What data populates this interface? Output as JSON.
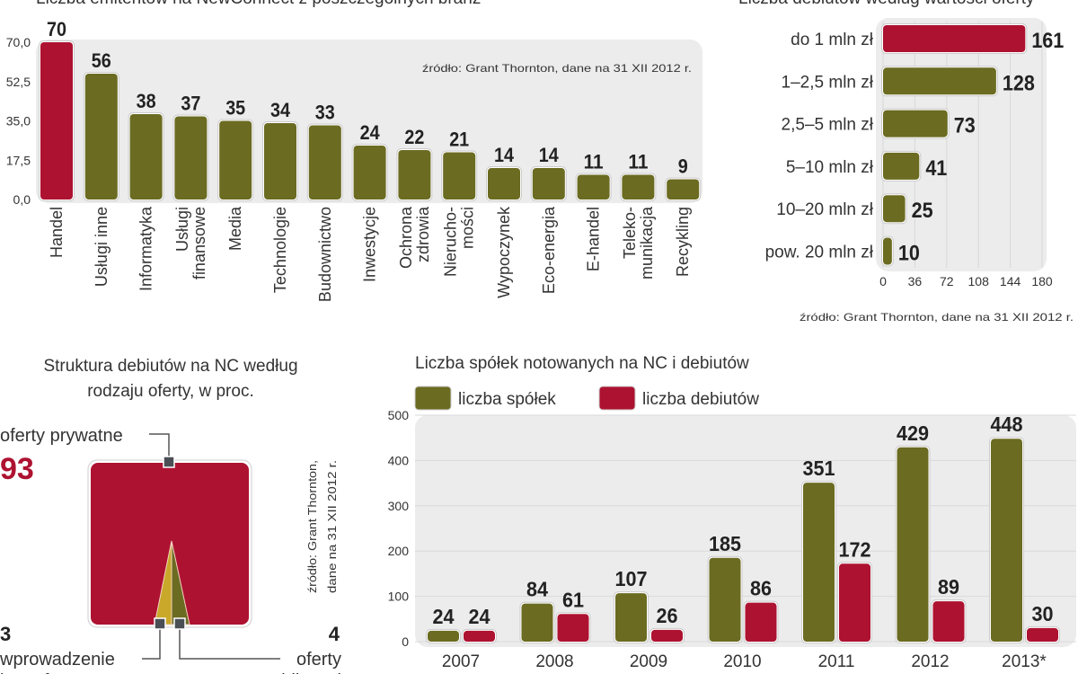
{
  "colors": {
    "red": "#ae1231",
    "olive": "#6b6b22",
    "gold": "#c9a82a",
    "panel": "#ececec",
    "marker": "#4a4f55"
  },
  "chart_data": [
    {
      "type": "bar",
      "title": "Liczba emitentów na NewConnect z poszczególnych branż",
      "source": "źródło: Grant Thornton, dane na 31 XII 2012 r.",
      "categories": [
        "Handel",
        "Usługi inne",
        "Informatyka",
        "Usługi finansowe",
        "Media",
        "Technologie",
        "Budownictwo",
        "Inwestycje",
        "Ochrona zdrowia",
        "Nieruchomości",
        "Wypoczynek",
        "Eco-energia",
        "E-handel",
        "Telekomunikacja",
        "Recykling"
      ],
      "category_labels": [
        [
          "Handel"
        ],
        [
          "Usługi inne"
        ],
        [
          "Informatyka"
        ],
        [
          "Usługi",
          "finansowe"
        ],
        [
          "Media"
        ],
        [
          "Technologie"
        ],
        [
          "Budownictwo"
        ],
        [
          "Inwestycje"
        ],
        [
          "Ochrona",
          "zdrowia"
        ],
        [
          "Nierucho-",
          "mości"
        ],
        [
          "Wypoczynek"
        ],
        [
          "Eco-energia"
        ],
        [
          "E-handel"
        ],
        [
          "Teleko-",
          "munikacja"
        ],
        [
          "Recykling"
        ]
      ],
      "values": [
        70,
        56,
        38,
        37,
        35,
        34,
        33,
        24,
        22,
        21,
        14,
        14,
        11,
        11,
        9
      ],
      "highlight_index": 0,
      "yticks": [
        "0,0",
        "17,5",
        "35,0",
        "52,5",
        "70,0"
      ],
      "ylim": [
        0,
        70
      ]
    },
    {
      "type": "bar",
      "orientation": "horizontal",
      "title": "Liczba debiutów według wartości oferty",
      "source": "źródło: Grant Thornton, dane na 31 XII 2012 r.",
      "categories": [
        "do 1 mln zł",
        "1–2,5 mln zł",
        "2,5–5 mln zł",
        "5–10 mln zł",
        "10–20 mln zł",
        "pow. 20 mln zł"
      ],
      "values": [
        161,
        128,
        73,
        41,
        25,
        10
      ],
      "highlight_index": 0,
      "xticks": [
        0,
        36,
        72,
        108,
        144,
        180
      ],
      "xlim": [
        0,
        180
      ]
    },
    {
      "type": "area",
      "title_lines": [
        "Struktura debiutów na NC według",
        "rodzaju oferty, w proc."
      ],
      "source_lines": [
        "źródło: Grant Thornton,",
        "dane na 31 XII 2012 r."
      ],
      "slices": [
        {
          "label": "oferty prywatne",
          "value": 93
        },
        {
          "label_lines": [
            "wprowadzenie",
            "bez oferty"
          ],
          "value": 3
        },
        {
          "label_lines": [
            "oferty",
            "publicznej"
          ],
          "value": 4
        }
      ]
    },
    {
      "type": "bar",
      "title": "Liczba spółek notowanych na NC i debiutów",
      "categories": [
        "2007",
        "2008",
        "2009",
        "2010",
        "2011",
        "2012",
        "2013*"
      ],
      "series": [
        {
          "name": "liczba spółek",
          "values": [
            24,
            84,
            107,
            185,
            351,
            429,
            448
          ]
        },
        {
          "name": "liczba debiutów",
          "values": [
            24,
            61,
            26,
            86,
            172,
            89,
            30
          ]
        }
      ],
      "yticks": [
        0,
        100,
        200,
        300,
        400,
        500
      ],
      "ylim": [
        0,
        500
      ]
    }
  ]
}
